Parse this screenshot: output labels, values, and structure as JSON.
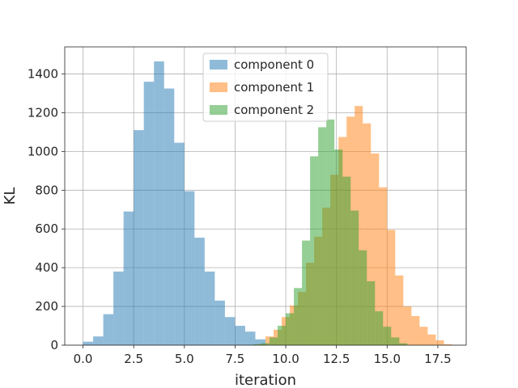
{
  "chart_data": {
    "type": "histogram",
    "title": "",
    "xlabel": "iteration",
    "ylabel": "KL",
    "xlim": [
      -0.9,
      18.9
    ],
    "ylim": [
      0,
      1540
    ],
    "grid": true,
    "legend_position": "top-center",
    "x_ticks": [
      0,
      2.5,
      5,
      7.5,
      10,
      12.5,
      15,
      17.5
    ],
    "x_tick_labels": [
      "0.0",
      "2.5",
      "5.0",
      "7.5",
      "10.0",
      "12.5",
      "15.0",
      "17.5"
    ],
    "y_ticks": [
      0,
      200,
      400,
      600,
      800,
      1000,
      1200,
      1400
    ],
    "y_tick_labels": [
      "0",
      "200",
      "400",
      "600",
      "800",
      "1000",
      "1200",
      "1400"
    ],
    "series": [
      {
        "name": "component 0",
        "color": "#1f77b4",
        "opacity": 0.5,
        "bin_edges": [
          0.0,
          0.5,
          1.0,
          1.5,
          2.0,
          2.5,
          3.0,
          3.5,
          4.0,
          4.5,
          5.0,
          5.5,
          6.0,
          6.5,
          7.0,
          7.5,
          8.0,
          8.5,
          9.0
        ],
        "counts": [
          18,
          45,
          160,
          380,
          690,
          1110,
          1360,
          1465,
          1325,
          1045,
          795,
          555,
          380,
          230,
          145,
          100,
          70,
          30
        ]
      },
      {
        "name": "component 1",
        "color": "#ff7f0e",
        "opacity": 0.5,
        "bin_edges": [
          8.6,
          9.0,
          9.4,
          9.8,
          10.2,
          10.6,
          11.0,
          11.4,
          11.8,
          12.2,
          12.6,
          13.0,
          13.4,
          13.8,
          14.2,
          14.6,
          15.0,
          15.4,
          15.8,
          16.2,
          16.6,
          17.0,
          17.4,
          17.8,
          18.2
        ],
        "counts": [
          5,
          45,
          80,
          145,
          205,
          275,
          425,
          560,
          710,
          880,
          1075,
          1180,
          1235,
          1145,
          990,
          815,
          595,
          360,
          200,
          150,
          95,
          55,
          25,
          5
        ]
      },
      {
        "name": "component 2",
        "color": "#2ca02c",
        "opacity": 0.5,
        "bin_edges": [
          8.4,
          8.8,
          9.2,
          9.6,
          10.0,
          10.4,
          10.8,
          11.2,
          11.6,
          12.0,
          12.4,
          12.8,
          13.2,
          13.6,
          14.0,
          14.4,
          14.8,
          15.2,
          15.6,
          16.0
        ],
        "counts": [
          5,
          10,
          40,
          100,
          165,
          295,
          540,
          975,
          1125,
          1165,
          1010,
          870,
          695,
          490,
          330,
          175,
          95,
          40,
          10
        ]
      }
    ]
  }
}
